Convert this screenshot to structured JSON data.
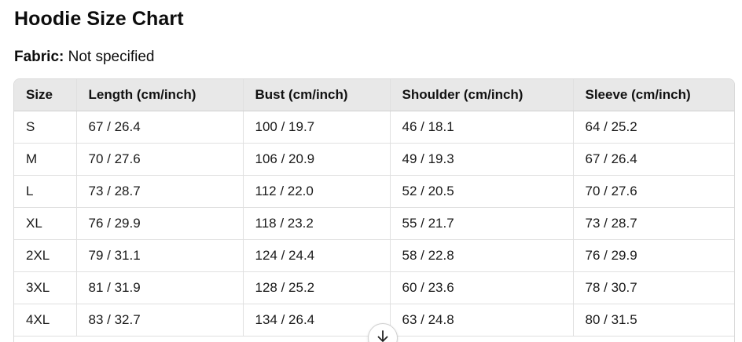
{
  "title": "Hoodie Size Chart",
  "fabric": {
    "label": "Fabric:",
    "value": "Not specified"
  },
  "table": {
    "headers": [
      "Size",
      "Length (cm/inch)",
      "Bust (cm/inch)",
      "Shoulder (cm/inch)",
      "Sleeve (cm/inch)"
    ],
    "rows": [
      [
        "S",
        "67 / 26.4",
        "100 / 19.7",
        "46 / 18.1",
        "64 / 25.2"
      ],
      [
        "M",
        "70 / 27.6",
        "106 / 20.9",
        "49 / 19.3",
        "67 / 26.4"
      ],
      [
        "L",
        "73 / 28.7",
        "112 / 22.0",
        "52 / 20.5",
        "70 / 27.6"
      ],
      [
        "XL",
        "76 / 29.9",
        "118 / 23.2",
        "55 / 21.7",
        "73 / 28.7"
      ],
      [
        "2XL",
        "79 / 31.1",
        "124 / 24.4",
        "58 / 22.8",
        "76 / 29.9"
      ],
      [
        "3XL",
        "81 / 31.9",
        "128 / 25.2",
        "60 / 23.6",
        "78 / 30.7"
      ],
      [
        "4XL",
        "83 / 32.7",
        "134 / 26.4",
        "63 / 24.8",
        "80 / 31.5"
      ]
    ]
  },
  "scroll_button": {
    "icon": "arrow-down-icon"
  }
}
